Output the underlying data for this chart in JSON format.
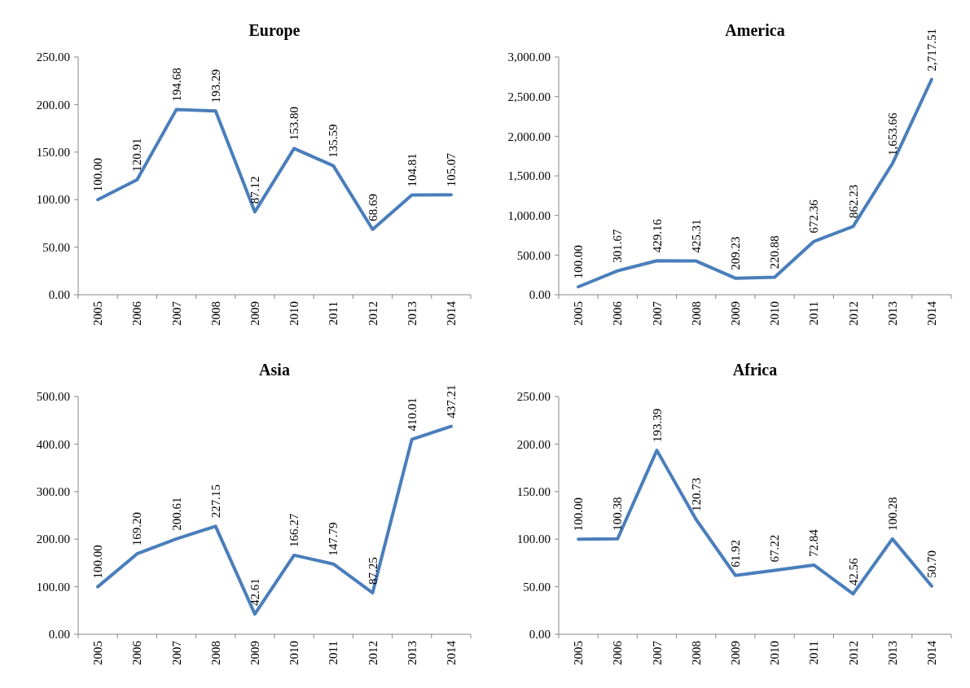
{
  "chart_data": [
    {
      "type": "line",
      "title": "Europe",
      "categories": [
        "2005",
        "2006",
        "2007",
        "2008",
        "2009",
        "2010",
        "2011",
        "2012",
        "2013",
        "2014"
      ],
      "ylim": [
        0,
        250
      ],
      "yticks": [
        {
          "value": 0,
          "label": "0.00"
        },
        {
          "value": 50,
          "label": "50.00"
        },
        {
          "value": 100,
          "label": "100.00"
        },
        {
          "value": 150,
          "label": "150.00"
        },
        {
          "value": 200,
          "label": "200.00"
        },
        {
          "value": 250,
          "label": "250.00"
        }
      ],
      "grid": false,
      "series": [
        {
          "color": "#4a7ebb",
          "values": [
            100,
            120.91,
            194.68,
            193.29,
            87.12,
            153.8,
            135.59,
            68.69,
            104.81,
            105.07
          ],
          "value_labels": [
            "100.00",
            "120.91",
            "194.68",
            "193.29",
            "87.12",
            "153.80",
            "135.59",
            "68.69",
            "104.81",
            "105.07"
          ]
        }
      ]
    },
    {
      "type": "line",
      "title": "America",
      "categories": [
        "2005",
        "2006",
        "2007",
        "2008",
        "2009",
        "2010",
        "2011",
        "2012",
        "2013",
        "2014"
      ],
      "ylim": [
        0,
        3000
      ],
      "yticks": [
        {
          "value": 0,
          "label": "0.00"
        },
        {
          "value": 500,
          "label": "500.00"
        },
        {
          "value": 1000,
          "label": "1,000.00"
        },
        {
          "value": 1500,
          "label": "1,500.00"
        },
        {
          "value": 2000,
          "label": "2,000.00"
        },
        {
          "value": 2500,
          "label": "2,500.00"
        },
        {
          "value": 3000,
          "label": "3,000.00"
        }
      ],
      "grid": false,
      "series": [
        {
          "color": "#4a7ebb",
          "values": [
            100,
            301.67,
            429.16,
            425.31,
            209.23,
            220.88,
            672.36,
            862.23,
            1653.66,
            2717.51
          ],
          "value_labels": [
            "100.00",
            "301.67",
            "429.16",
            "425.31",
            "209.23",
            "220.88",
            "672.36",
            "862.23",
            "1,653.66",
            "2,717.51"
          ]
        }
      ]
    },
    {
      "type": "line",
      "title": "Asia",
      "categories": [
        "2005",
        "2006",
        "2007",
        "2008",
        "2009",
        "2010",
        "2011",
        "2012",
        "2013",
        "2014"
      ],
      "ylim": [
        0,
        500
      ],
      "yticks": [
        {
          "value": 0,
          "label": "0.00"
        },
        {
          "value": 100,
          "label": "100.00"
        },
        {
          "value": 200,
          "label": "200.00"
        },
        {
          "value": 300,
          "label": "300.00"
        },
        {
          "value": 400,
          "label": "400.00"
        },
        {
          "value": 500,
          "label": "500.00"
        }
      ],
      "grid": false,
      "series": [
        {
          "color": "#4a7ebb",
          "values": [
            100,
            169.2,
            200.61,
            227.15,
            42.61,
            166.27,
            147.79,
            87.25,
            410.01,
            437.21
          ],
          "value_labels": [
            "100.00",
            "169.20",
            "200.61",
            "227.15",
            "42.61",
            "166.27",
            "147.79",
            "87.25",
            "410.01",
            "437.21"
          ]
        }
      ]
    },
    {
      "type": "line",
      "title": "Africa",
      "categories": [
        "2005",
        "2006",
        "2007",
        "2008",
        "2009",
        "2010",
        "2011",
        "2012",
        "2013",
        "2014"
      ],
      "ylim": [
        0,
        250
      ],
      "yticks": [
        {
          "value": 0,
          "label": "0.00"
        },
        {
          "value": 50,
          "label": "50.00"
        },
        {
          "value": 100,
          "label": "100.00"
        },
        {
          "value": 150,
          "label": "150.00"
        },
        {
          "value": 200,
          "label": "200.00"
        },
        {
          "value": 250,
          "label": "250.00"
        }
      ],
      "grid": false,
      "series": [
        {
          "color": "#4a7ebb",
          "values": [
            100,
            100.38,
            193.39,
            120.73,
            61.92,
            67.22,
            72.84,
            42.56,
            100.28,
            50.7
          ],
          "value_labels": [
            "100.00",
            "100.38",
            "193.39",
            "120.73",
            "61.92",
            "67.22",
            "72.84",
            "42.56",
            "100.28",
            "50.70"
          ]
        }
      ]
    }
  ]
}
